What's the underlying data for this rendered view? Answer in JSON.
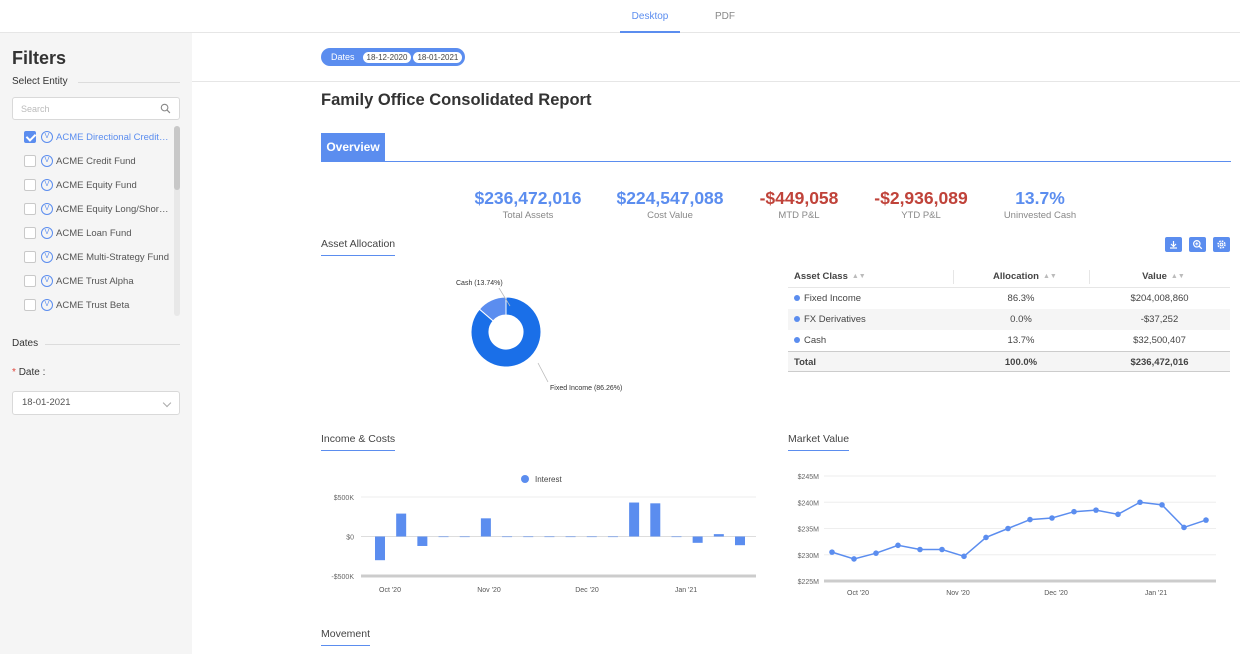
{
  "top_tabs": [
    {
      "label": "Desktop",
      "active": true
    },
    {
      "label": "PDF",
      "active": false
    }
  ],
  "sidebar": {
    "title": "Filters",
    "select_entity_label": "Select Entity",
    "search_placeholder": "Search",
    "entities": [
      {
        "label": "ACME Directional Credit Fund",
        "checked": true,
        "badge": "V"
      },
      {
        "label": "ACME Credit Fund",
        "checked": false,
        "badge": "V"
      },
      {
        "label": "ACME Equity Fund",
        "checked": false,
        "badge": "V"
      },
      {
        "label": "ACME Equity Long/Short Fund",
        "checked": false,
        "badge": "V"
      },
      {
        "label": "ACME Loan Fund",
        "checked": false,
        "badge": "V"
      },
      {
        "label": "ACME Multi-Strategy Fund",
        "checked": false,
        "badge": "V"
      },
      {
        "label": "ACME Trust Alpha",
        "checked": false,
        "badge": "V"
      },
      {
        "label": "ACME Trust Beta",
        "checked": false,
        "badge": "V"
      }
    ],
    "dates_section_label": "Dates",
    "date_required_mark": "*",
    "date_label": "Date :",
    "date_value": "18-01-2021"
  },
  "date_pill": {
    "label": "Dates",
    "start": "18-12-2020",
    "end": "18-01-2021"
  },
  "report_title": "Family Office Consolidated Report",
  "overview_tab": "Overview",
  "kpis": [
    {
      "value": "$236,472,016",
      "label": "Total Assets",
      "color": "#5b8def"
    },
    {
      "value": "$224,547,088",
      "label": "Cost Value",
      "color": "#5b8def"
    },
    {
      "value": "-$449,058",
      "label": "MTD P&L",
      "color": "#c0433a"
    },
    {
      "value": "-$2,936,089",
      "label": "YTD P&L",
      "color": "#c0433a"
    },
    {
      "value": "13.7%",
      "label": "Uninvested Cash",
      "color": "#5b8def"
    }
  ],
  "asset_allocation": {
    "title": "Asset Allocation",
    "toolbar_icons": [
      "download-icon",
      "zoom-icon",
      "settings-icon"
    ],
    "table": {
      "headers": [
        "Asset Class",
        "Allocation",
        "Value"
      ],
      "rows": [
        {
          "asset": "Fixed Income",
          "allocation": "86.3%",
          "value": "$204,008,860"
        },
        {
          "asset": "FX Derivatives",
          "allocation": "0.0%",
          "value": "-$37,252"
        },
        {
          "asset": "Cash",
          "allocation": "13.7%",
          "value": "$32,500,407"
        }
      ],
      "total": {
        "label": "Total",
        "allocation": "100.0%",
        "value": "$236,472,016"
      }
    }
  },
  "income_costs": {
    "title": "Income & Costs"
  },
  "market_value": {
    "title": "Market Value"
  },
  "movement": {
    "title": "Movement"
  },
  "colors": {
    "accent": "#5b8def",
    "negative": "#c0433a",
    "donut_main": "#1a6fe8",
    "donut_cash": "#5b8def"
  },
  "chart_data": [
    {
      "type": "pie",
      "title": "",
      "categories": [
        "Cash (13.74%)",
        "Fixed Income (86.26%)"
      ],
      "values": [
        13.74,
        86.26
      ],
      "donut": true
    },
    {
      "type": "bar",
      "title": "",
      "legend": [
        "Interest"
      ],
      "legend_position": "top",
      "x_tick_labels": [
        "Oct '20",
        "Nov '20",
        "Dec '20",
        "Jan '21"
      ],
      "y_tick_labels": [
        "$500K",
        "$0",
        "-$500K"
      ],
      "ylim": [
        -500000,
        500000
      ],
      "series": [
        {
          "name": "Interest",
          "values": [
            -300000,
            290000,
            -120000,
            0,
            0,
            230000,
            0,
            0,
            0,
            0,
            0,
            0,
            430000,
            420000,
            0,
            -80000,
            30000,
            -110000
          ]
        }
      ]
    },
    {
      "type": "line",
      "title": "",
      "x_tick_labels": [
        "Oct '20",
        "Nov '20",
        "Dec '20",
        "Jan '21"
      ],
      "y_tick_labels": [
        "$245M",
        "$240M",
        "$235M",
        "$230M",
        "$225M"
      ],
      "ylim": [
        225,
        245
      ],
      "grid": true,
      "series": [
        {
          "values": [
            230.5,
            229.2,
            230.3,
            231.8,
            231.0,
            231.0,
            229.7,
            233.3,
            235.0,
            236.7,
            237.0,
            238.2,
            238.5,
            237.7,
            240.0,
            239.5,
            235.2,
            236.6
          ]
        }
      ]
    }
  ]
}
